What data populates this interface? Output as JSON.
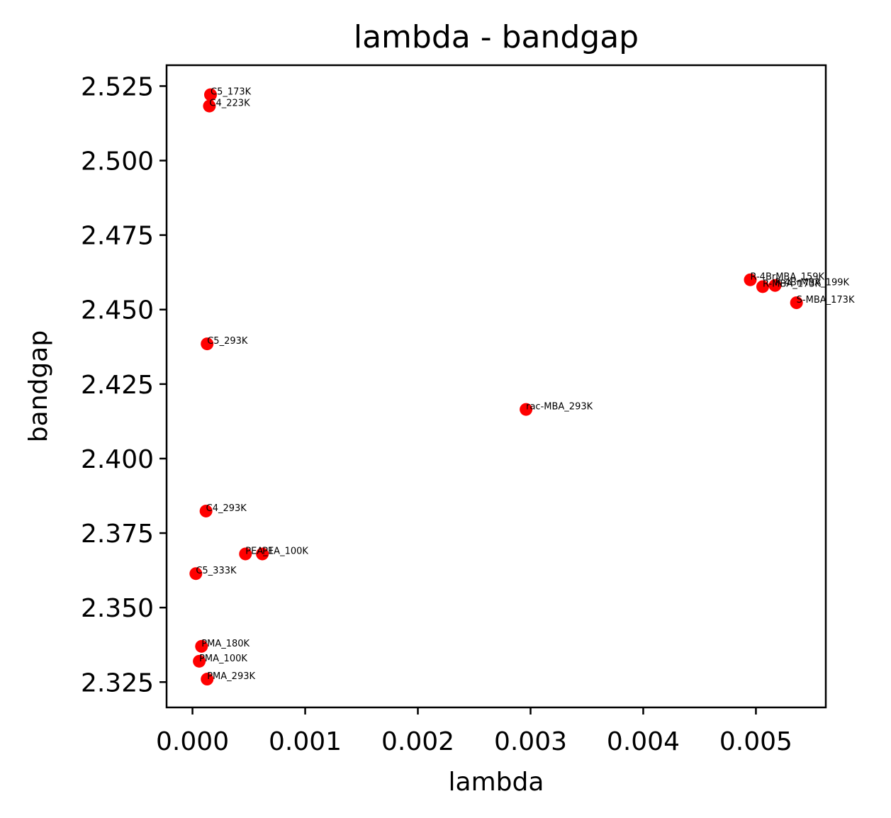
{
  "chart_data": {
    "type": "scatter",
    "title": "lambda - bandgap",
    "xlabel": "lambda",
    "ylabel": "bandgap",
    "xlim": [
      -0.00023,
      0.00562
    ],
    "ylim": [
      2.3165,
      2.532
    ],
    "xticks": [
      0.0,
      0.001,
      0.002,
      0.003,
      0.004,
      0.005
    ],
    "xtick_labels": [
      "0.000",
      "0.001",
      "0.002",
      "0.003",
      "0.004",
      "0.005"
    ],
    "yticks": [
      2.325,
      2.35,
      2.375,
      2.4,
      2.425,
      2.45,
      2.475,
      2.5,
      2.525
    ],
    "ytick_labels": [
      "2.325",
      "2.350",
      "2.375",
      "2.400",
      "2.425",
      "2.450",
      "2.475",
      "2.500",
      "2.525"
    ],
    "grid": false,
    "marker_color": "#ff0000",
    "points": [
      {
        "label": "C5_173K",
        "x": 0.00016,
        "y": 2.5221
      },
      {
        "label": "C4_223K",
        "x": 0.00015,
        "y": 2.5183
      },
      {
        "label": "R-4BrMBA_159K",
        "x": 0.00495,
        "y": 2.46
      },
      {
        "label": "R-MBA_173K",
        "x": 0.00506,
        "y": 2.4577
      },
      {
        "label": "R-4BrMBA_199K",
        "x": 0.00517,
        "y": 2.4581
      },
      {
        "label": "S-MBA_173K",
        "x": 0.00536,
        "y": 2.4523
      },
      {
        "label": "C5_293K",
        "x": 0.00013,
        "y": 2.4385
      },
      {
        "label": "rac-MBA_293K",
        "x": 0.00296,
        "y": 2.4165
      },
      {
        "label": "C4_293K",
        "x": 0.00012,
        "y": 2.3824
      },
      {
        "label": "PEA_1",
        "x": 0.00047,
        "y": 2.368
      },
      {
        "label": "PEA_100K",
        "x": 0.00062,
        "y": 2.368
      },
      {
        "label": "C5_333K",
        "x": 3e-05,
        "y": 2.3614
      },
      {
        "label": "PMA_180K",
        "x": 8e-05,
        "y": 2.337
      },
      {
        "label": "PMA_100K",
        "x": 6e-05,
        "y": 2.332
      },
      {
        "label": "PMA_293K",
        "x": 0.00013,
        "y": 2.326
      }
    ]
  }
}
